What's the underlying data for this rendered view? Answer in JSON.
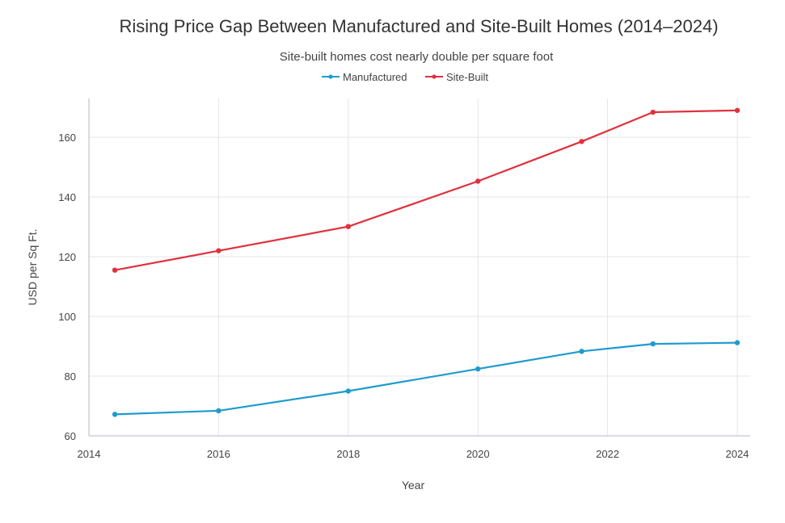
{
  "chart_data": {
    "type": "line",
    "title": "Rising Price Gap Between Manufactured and Site-Built Homes (2014–2024)",
    "subtitle": "Site-built homes cost nearly double per square foot",
    "xlabel": "Year",
    "ylabel": "USD per Sq Ft.",
    "xlim": [
      2014,
      2024.2
    ],
    "ylim": [
      60,
      173
    ],
    "x_ticks": [
      2014,
      2016,
      2018,
      2020,
      2022,
      2024
    ],
    "x_tick_labels": [
      "2014",
      "2016",
      "2018",
      "2020",
      "2022",
      "2024"
    ],
    "y_ticks": [
      60,
      80,
      100,
      120,
      140,
      160
    ],
    "y_tick_labels": [
      "60",
      "80",
      "100",
      "120",
      "140",
      "160"
    ],
    "grid": true,
    "legend_position": "top-center",
    "series": [
      {
        "name": "Manufactured",
        "color": "#1f9bcf",
        "x": [
          2014.4,
          2016,
          2018,
          2020,
          2021.6,
          2022.7,
          2024
        ],
        "y": [
          67.2,
          68.4,
          75.0,
          82.4,
          88.3,
          90.8,
          91.2
        ]
      },
      {
        "name": "Site-Built",
        "color": "#e0313c",
        "x": [
          2014.4,
          2016,
          2018,
          2020,
          2021.6,
          2022.7,
          2024
        ],
        "y": [
          115.5,
          122.0,
          130.1,
          145.3,
          158.6,
          168.4,
          169.0
        ]
      }
    ]
  }
}
